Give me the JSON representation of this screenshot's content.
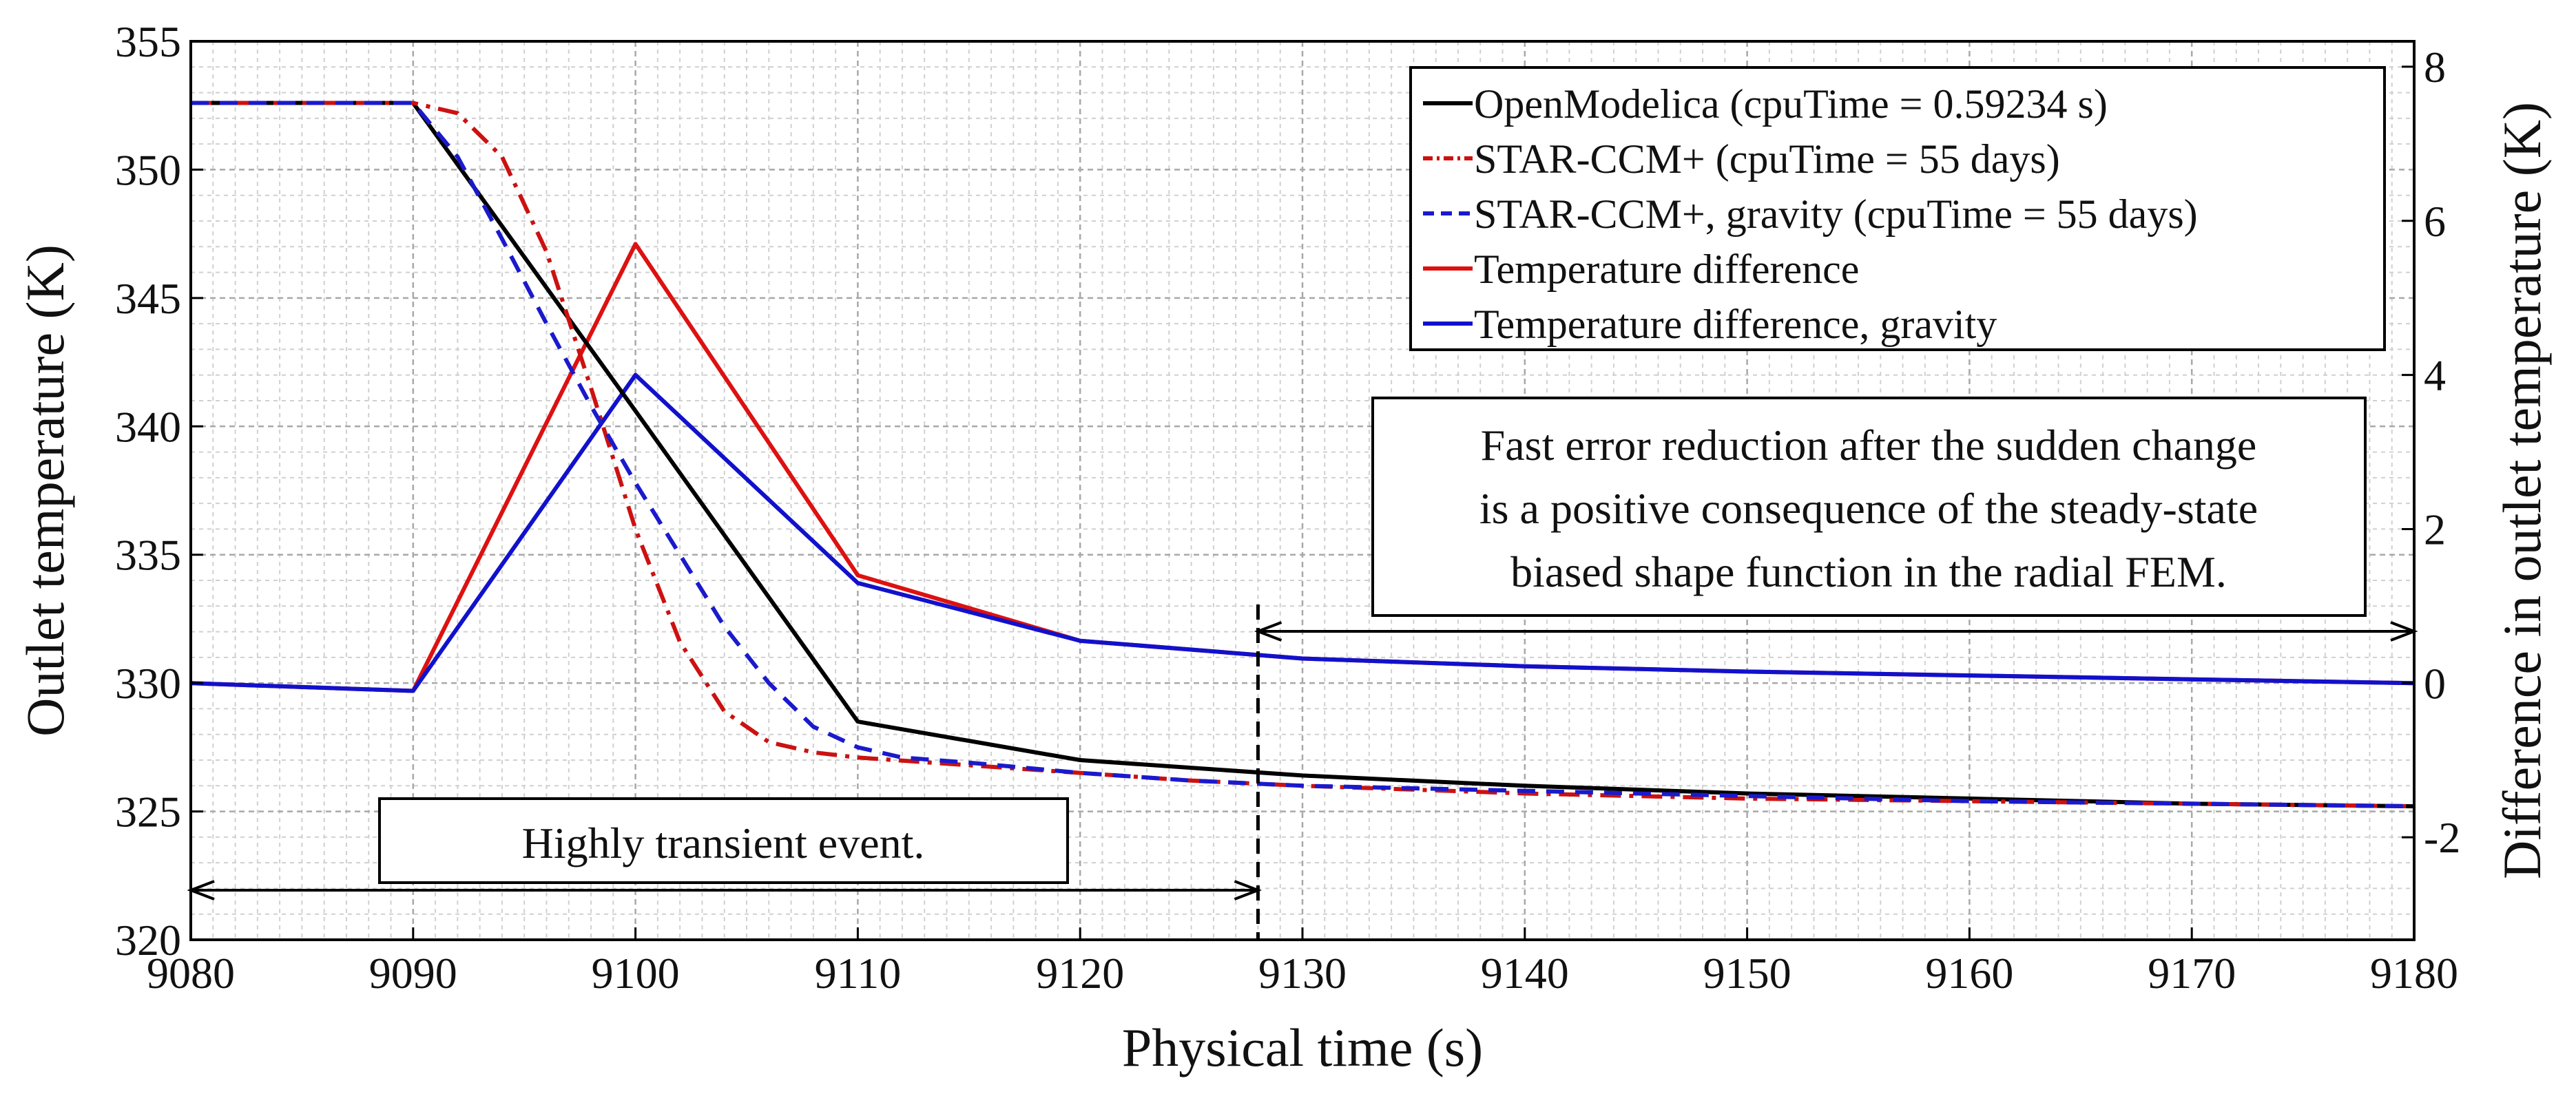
{
  "chart_data": {
    "type": "line",
    "title": "",
    "xlabel": "Physical time (s)",
    "ylabel": "Outlet temperature (K)",
    "y2label": "Difference in outlet temperature (K)",
    "xlim": [
      9080,
      9180
    ],
    "ylim": [
      320,
      355
    ],
    "y2lim": [
      -3.33,
      8.33
    ],
    "grid": "major and minor",
    "legend_position": "top-right",
    "xticks": [
      9080,
      9090,
      9100,
      9110,
      9120,
      9130,
      9140,
      9150,
      9160,
      9170,
      9180
    ],
    "yticks": [
      320,
      325,
      330,
      335,
      340,
      345,
      350,
      355
    ],
    "y2ticks": [
      -2,
      0,
      2,
      4,
      6,
      8
    ],
    "series": [
      {
        "name": "OpenModelica (cpuTime = 0.59234 s)",
        "axis": "left",
        "color": "#000000",
        "dash": "solid",
        "x": [
          9080,
          9090,
          9100,
          9110,
          9120,
          9130,
          9140,
          9150,
          9160,
          9170,
          9180
        ],
        "values": [
          352.6,
          352.6,
          340.6,
          328.5,
          327.0,
          326.4,
          326.0,
          325.7,
          325.5,
          325.3,
          325.2
        ]
      },
      {
        "name": "STAR-CCM+ (cpuTime = 55 days)",
        "axis": "left",
        "color": "#cc1111",
        "dash": "dashdot",
        "x": [
          9080,
          9090,
          9092,
          9094,
          9096,
          9098,
          9100,
          9102,
          9104,
          9106,
          9108,
          9110,
          9115,
          9120,
          9125,
          9130,
          9140,
          9150,
          9160,
          9170,
          9180
        ],
        "values": [
          352.6,
          352.6,
          352.2,
          350.5,
          346.8,
          341.5,
          336.0,
          331.6,
          328.9,
          327.7,
          327.3,
          327.1,
          326.8,
          326.5,
          326.2,
          326.0,
          325.7,
          325.5,
          325.4,
          325.3,
          325.2
        ]
      },
      {
        "name": "STAR-CCM+, gravity (cpuTime = 55 days)",
        "axis": "left",
        "color": "#1a1acc",
        "dash": "dashed",
        "x": [
          9080,
          9090,
          9092,
          9094,
          9096,
          9098,
          9100,
          9102,
          9104,
          9106,
          9108,
          9110,
          9112,
          9115,
          9120,
          9125,
          9130,
          9140,
          9150,
          9160,
          9170,
          9180
        ],
        "values": [
          352.6,
          352.6,
          350.5,
          347.3,
          344.0,
          340.8,
          337.8,
          335.0,
          332.2,
          330.0,
          328.3,
          327.5,
          327.1,
          326.9,
          326.5,
          326.2,
          326.0,
          325.8,
          325.6,
          325.4,
          325.3,
          325.2
        ]
      },
      {
        "name": "Temperature difference",
        "axis": "right",
        "color": "#dd1111",
        "dash": "solid",
        "x": [
          9080,
          9090,
          9100,
          9110,
          9120,
          9130,
          9140,
          9150,
          9160,
          9170,
          9180
        ],
        "values": [
          0.0,
          -0.1,
          5.7,
          1.4,
          0.55,
          0.32,
          0.22,
          0.15,
          0.1,
          0.05,
          0.0
        ]
      },
      {
        "name": "Temperature difference, gravity",
        "axis": "right",
        "color": "#1111cc",
        "dash": "solid",
        "x": [
          9080,
          9090,
          9100,
          9110,
          9120,
          9130,
          9140,
          9150,
          9160,
          9170,
          9180
        ],
        "values": [
          0.0,
          -0.1,
          4.0,
          1.3,
          0.55,
          0.32,
          0.22,
          0.15,
          0.1,
          0.05,
          0.0
        ]
      }
    ],
    "vline_x": 9128,
    "annotations": [
      {
        "id": "transient",
        "lines": [
          "Highly transient event."
        ],
        "arrow_from_x": 9080,
        "arrow_to_x": 9128
      },
      {
        "id": "error",
        "lines": [
          "Fast error reduction after the sudden change",
          "is a positive consequence of the steady-state",
          "biased shape function in the radial FEM."
        ],
        "arrow_from_x": 9128,
        "arrow_to_x": 9180
      }
    ]
  }
}
